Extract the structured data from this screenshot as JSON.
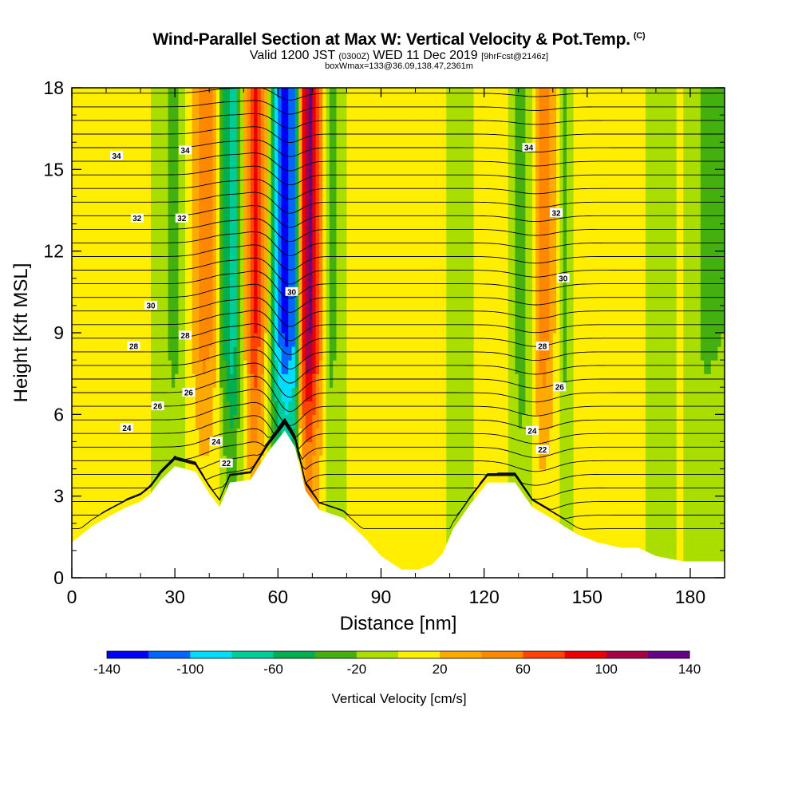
{
  "header": {
    "title": "Wind-Parallel Section at Max W: Vertical Velocity & Pot.Temp.",
    "title_tag": "(C)",
    "subtitle_main": "Valid 1200 JST",
    "subtitle_zulu": "(0300Z)",
    "subtitle_date": "WED 11 Dec 2019",
    "subtitle_fcst": "[9hrFcst@2146z]",
    "subtitle2": "boxWmax=133@36.09,138.47,2361m"
  },
  "colorbar": {
    "title": "Vertical Velocity [cm/s]",
    "tick_labels": [
      "-140",
      "-100",
      "-60",
      "-20",
      "20",
      "60",
      "100",
      "140"
    ],
    "colors": [
      "#0000ff",
      "#0066ff",
      "#00ddff",
      "#00cc99",
      "#00b050",
      "#44b010",
      "#aadd00",
      "#ffee00",
      "#ffaa00",
      "#ff8800",
      "#ff4400",
      "#ee0000",
      "#aa0044",
      "#660088"
    ]
  },
  "chart_data": {
    "type": "heatmap",
    "xlabel": "Distance [nm]",
    "ylabel": "Height [Kft MSL]",
    "xlim": [
      0,
      190
    ],
    "ylim": [
      0,
      18
    ],
    "x_ticks": [
      0,
      30,
      60,
      90,
      120,
      150,
      180
    ],
    "y_ticks": [
      0,
      3,
      6,
      9,
      12,
      15,
      18
    ],
    "x_tick_labels": [
      "0",
      "30",
      "60",
      "90",
      "120",
      "150",
      "180"
    ],
    "y_tick_labels": [
      "0",
      "3",
      "6",
      "9",
      "12",
      "15",
      "18"
    ],
    "field": "Vertical Velocity [cm/s]",
    "color_levels": [
      -140,
      -120,
      -100,
      -80,
      -60,
      -40,
      -20,
      0,
      20,
      40,
      60,
      80,
      100,
      120,
      140
    ],
    "terrain_kft": [
      [
        0,
        1.3
      ],
      [
        3,
        1.6
      ],
      [
        6,
        1.9
      ],
      [
        10,
        2.2
      ],
      [
        13,
        2.4
      ],
      [
        16,
        2.6
      ],
      [
        20,
        2.8
      ],
      [
        23,
        3.1
      ],
      [
        26,
        3.6
      ],
      [
        30,
        4.1
      ],
      [
        36,
        3.9
      ],
      [
        40,
        3.1
      ],
      [
        43,
        2.6
      ],
      [
        46,
        3.5
      ],
      [
        52,
        3.6
      ],
      [
        57,
        4.6
      ],
      [
        62,
        5.4
      ],
      [
        65,
        4.8
      ],
      [
        68,
        3.2
      ],
      [
        72,
        2.5
      ],
      [
        79,
        2.2
      ],
      [
        85,
        1.5
      ],
      [
        90,
        0.8
      ],
      [
        96,
        0.3
      ],
      [
        101,
        0.3
      ],
      [
        105,
        0.5
      ],
      [
        108,
        0.9
      ],
      [
        111,
        1.8
      ],
      [
        116,
        2.7
      ],
      [
        121,
        3.5
      ],
      [
        129,
        3.5
      ],
      [
        134,
        2.6
      ],
      [
        142,
        2.0
      ],
      [
        147,
        1.6
      ],
      [
        153,
        1.3
      ],
      [
        160,
        1.1
      ],
      [
        165,
        1.1
      ],
      [
        170,
        0.8
      ],
      [
        178,
        0.6
      ],
      [
        182,
        0.6
      ],
      [
        190,
        0.6
      ]
    ],
    "vertical_velocity_columns": [
      {
        "x": 0,
        "w": 0
      },
      {
        "x": 10,
        "w": 5
      },
      {
        "x": 20,
        "w": 8
      },
      {
        "x": 26,
        "w": -10
      },
      {
        "x": 30,
        "w": -30
      },
      {
        "x": 35,
        "w": 20
      },
      {
        "x": 38,
        "w": 50
      },
      {
        "x": 41,
        "w": 40
      },
      {
        "x": 44,
        "w": -40
      },
      {
        "x": 47,
        "w": -80
      },
      {
        "x": 50,
        "w": 10
      },
      {
        "x": 53,
        "w": 90
      },
      {
        "x": 56,
        "w": 40
      },
      {
        "x": 59,
        "w": -80
      },
      {
        "x": 62,
        "w": -130
      },
      {
        "x": 65,
        "w": -100
      },
      {
        "x": 67,
        "w": 80
      },
      {
        "x": 69,
        "w": 133
      },
      {
        "x": 72,
        "w": 60
      },
      {
        "x": 75,
        "w": -30
      },
      {
        "x": 78,
        "w": -15
      },
      {
        "x": 82,
        "w": 10
      },
      {
        "x": 90,
        "w": 15
      },
      {
        "x": 100,
        "w": 10
      },
      {
        "x": 108,
        "w": 5
      },
      {
        "x": 112,
        "w": -20
      },
      {
        "x": 118,
        "w": 5
      },
      {
        "x": 126,
        "w": 10
      },
      {
        "x": 131,
        "w": -40
      },
      {
        "x": 134,
        "w": 5
      },
      {
        "x": 137,
        "w": 60
      },
      {
        "x": 140,
        "w": 30
      },
      {
        "x": 143,
        "w": -30
      },
      {
        "x": 147,
        "w": 5
      },
      {
        "x": 155,
        "w": 10
      },
      {
        "x": 165,
        "w": 5
      },
      {
        "x": 172,
        "w": -15
      },
      {
        "x": 177,
        "w": 5
      },
      {
        "x": 184,
        "w": -25
      },
      {
        "x": 190,
        "w": -20
      }
    ],
    "potential_temperature_labels": [
      {
        "text": "34",
        "x": 13,
        "y": 15.5
      },
      {
        "text": "34",
        "x": 33,
        "y": 15.7
      },
      {
        "text": "34",
        "x": 133,
        "y": 15.8
      },
      {
        "text": "32",
        "x": 19,
        "y": 13.2
      },
      {
        "text": "32",
        "x": 32,
        "y": 13.2
      },
      {
        "text": "32",
        "x": 141,
        "y": 13.4
      },
      {
        "text": "30",
        "x": 23,
        "y": 10.0
      },
      {
        "text": "30",
        "x": 64,
        "y": 10.5
      },
      {
        "text": "30",
        "x": 143,
        "y": 11.0
      },
      {
        "text": "28",
        "x": 18,
        "y": 8.5
      },
      {
        "text": "28",
        "x": 33,
        "y": 8.9
      },
      {
        "text": "28",
        "x": 137,
        "y": 8.5
      },
      {
        "text": "26",
        "x": 25,
        "y": 6.3
      },
      {
        "text": "26",
        "x": 34,
        "y": 6.8
      },
      {
        "text": "26",
        "x": 142,
        "y": 7.0
      },
      {
        "text": "24",
        "x": 16,
        "y": 5.5
      },
      {
        "text": "24",
        "x": 42,
        "y": 5.0
      },
      {
        "text": "24",
        "x": 134,
        "y": 5.4
      },
      {
        "text": "22",
        "x": 45,
        "y": 4.2
      },
      {
        "text": "22",
        "x": 137,
        "y": 4.7
      }
    ]
  }
}
